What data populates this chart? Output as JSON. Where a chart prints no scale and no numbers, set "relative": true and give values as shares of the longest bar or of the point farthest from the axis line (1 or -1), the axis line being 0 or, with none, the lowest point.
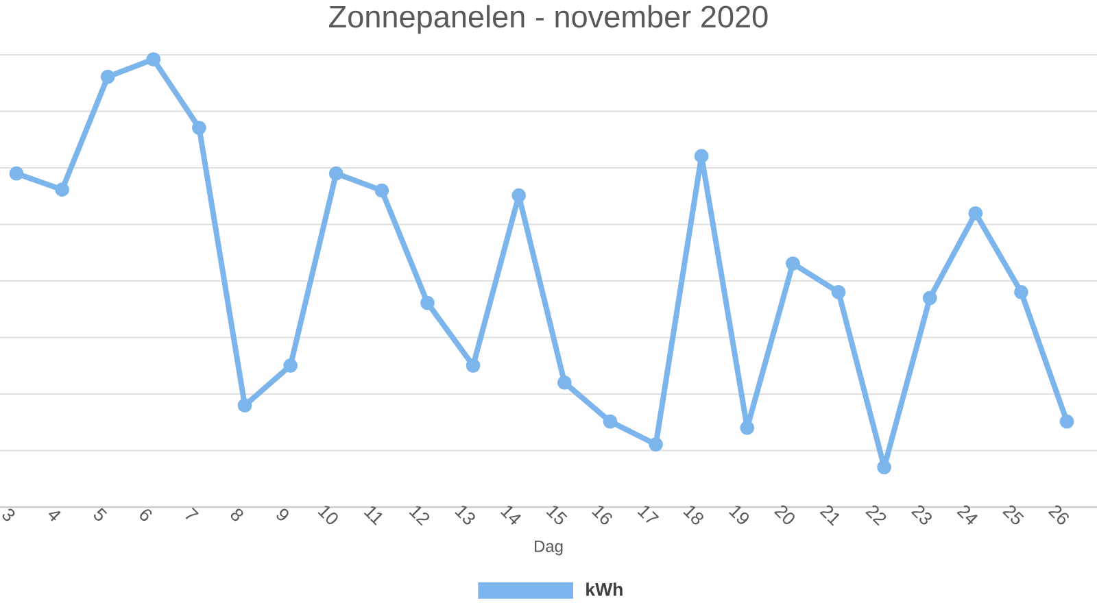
{
  "chart_data": {
    "type": "line",
    "title": "Zonnepanelen - november 2020",
    "xlabel": "Dag",
    "categories": [
      "3",
      "4",
      "5",
      "6",
      "7",
      "8",
      "9",
      "10",
      "11",
      "12",
      "13",
      "14",
      "15",
      "16",
      "17",
      "18",
      "19",
      "20",
      "21",
      "22",
      "23",
      "24",
      "25",
      "26"
    ],
    "series": [
      {
        "name": "kWh",
        "color": "#7cb5ec",
        "values": [
          0.745,
          0.709,
          0.961,
          1,
          0.847,
          0.227,
          0.316,
          0.745,
          0.707,
          0.456,
          0.316,
          0.696,
          0.278,
          0.191,
          0.14,
          0.784,
          0.177,
          0.544,
          0.48,
          0.089,
          0.467,
          0.656,
          0.48,
          0.191
        ]
      }
    ],
    "relative": true,
    "grid": "y",
    "legend": "bottom",
    "marker": "circle"
  }
}
